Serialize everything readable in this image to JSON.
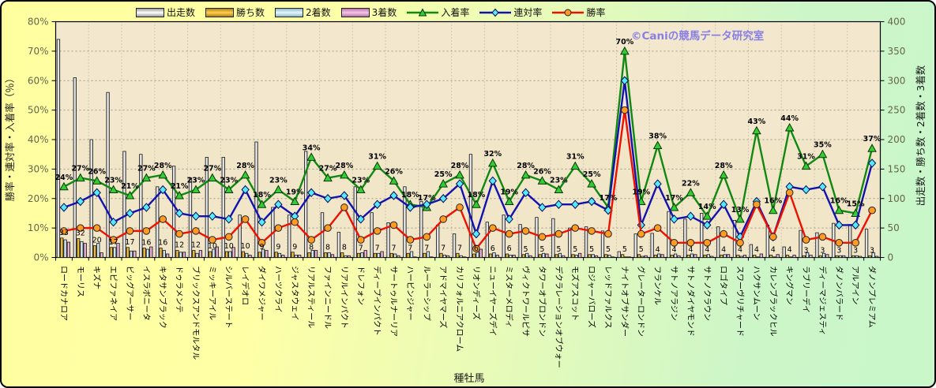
{
  "page": {
    "watermark": "©Caniの競馬データ研究室",
    "watermark_color": "#7d74e8"
  },
  "chart_data": {
    "type": "combo-bar-line",
    "x_axis": {
      "title": "種牡馬",
      "categories": [
        "ロードカナロア",
        "モーリス",
        "キズナ",
        "エピファネイア",
        "ビッグアーサー",
        "イスラボニータ",
        "キタサンブラック",
        "ドゥラメンテ",
        "ブリックスアンドモルタル",
        "ミッキーアイル",
        "シルバーステート",
        "レイデオロ",
        "ダイワメジャー",
        "ハーツクライ",
        "ジャスタウェイ",
        "リアルスティール",
        "ファインニードル",
        "リアルインパクト",
        "ドレフォン",
        "ディープインパクト",
        "サートゥルナーリア",
        "ハービンジャー",
        "ルーラーシップ",
        "アドマイヤマーズ",
        "カリフォルニアクローム",
        "リオンディーズ",
        "ニューイヤーズデイ",
        "ミスターメロディ",
        "ヴィクトワールピサ",
        "タワーオブロンドン",
        "デクラレーションオブウォー",
        "モズアスコット",
        "ロジャーバローズ",
        "レッドファルクス",
        "ナイトオブサンダー",
        "グレーターロンドン",
        "フランケル",
        "サトノアラジン",
        "サトノダイヤモンド",
        "サトノクラウン",
        "ロゴタイプ",
        "スワーヴリチャード",
        "ハクサンムーン",
        "カレンブラックヒル",
        "キングマン",
        "ラブリーデイ",
        "ディーマジェスティ",
        "ダノンバラード",
        "アルアイン",
        "ダノンプレミアム"
      ]
    },
    "y_left": {
      "title": "勝率・連対率・入着率（％）",
      "min": 0,
      "max": 80,
      "step": 10,
      "ticks": [
        "0%",
        "10%",
        "20%",
        "30%",
        "40%",
        "50%",
        "60%",
        "70%",
        "80%"
      ]
    },
    "y_right": {
      "title": "出走数・勝ち数・2着数・3着数",
      "min": 0,
      "max": 400,
      "step": 50,
      "ticks": [
        "0",
        "50",
        "100",
        "150",
        "200",
        "250",
        "300",
        "350",
        "400"
      ]
    },
    "grid": {
      "h_on": true,
      "v_on": true
    },
    "legend_position": "top",
    "series": [
      {
        "name": "出走数",
        "type": "bar",
        "axis": "right",
        "estimated": true,
        "data_labels": false,
        "edge": "#9a9a9a",
        "mid": "#ffffff",
        "values": [
          370,
          305,
          200,
          280,
          180,
          175,
          120,
          155,
          135,
          170,
          170,
          72,
          196,
          85,
          72,
          180,
          76,
          43,
          120,
          76,
          59,
          120,
          95,
          55,
          40,
          175,
          60,
          72,
          56,
          68,
          66,
          50,
          52,
          45,
          10,
          40,
          41,
          78,
          65,
          75,
          52,
          63,
          22,
          55,
          18,
          46,
          42,
          58,
          56,
          48
        ]
      },
      {
        "name": "勝ち数",
        "type": "bar",
        "axis": "right",
        "estimated": false,
        "data_labels": true,
        "edge": "#b07f10",
        "mid": "#ffd04e",
        "values": [
          33,
          32,
          20,
          17,
          17,
          16,
          16,
          12,
          12,
          10,
          10,
          10,
          9,
          9,
          9,
          8,
          8,
          8,
          7,
          7,
          7,
          7,
          7,
          7,
          7,
          6,
          6,
          6,
          5,
          5,
          5,
          5,
          5,
          5,
          5,
          5,
          4,
          4,
          4,
          4,
          4,
          4,
          4,
          4,
          4,
          3,
          3,
          3,
          3,
          3
        ]
      },
      {
        "name": "2着数",
        "type": "bar",
        "axis": "right",
        "estimated": true,
        "data_labels": false,
        "edge": "#8fb8c8",
        "mid": "#e6f7fd",
        "values": [
          30,
          27,
          24,
          17,
          11,
          14,
          12,
          9,
          7,
          14,
          10,
          7,
          14,
          7,
          4,
          12,
          8,
          3,
          8,
          7,
          6,
          10,
          10,
          4,
          3,
          9,
          8,
          4,
          7,
          7,
          7,
          4,
          5,
          4,
          1,
          2,
          6,
          6,
          6,
          5,
          5,
          2,
          1,
          1,
          1,
          8,
          7,
          3,
          3,
          8
        ]
      },
      {
        "name": "3着数",
        "type": "bar",
        "axis": "right",
        "estimated": true,
        "data_labels": false,
        "edge": "#b86fa8",
        "mid": "#f6c8e6",
        "values": [
          26,
          24,
          8,
          24,
          11,
          18,
          6,
          9,
          12,
          18,
          17,
          4,
          12,
          4,
          4,
          12,
          5,
          3,
          12,
          10,
          3,
          1,
          1,
          3,
          1,
          14,
          4,
          4,
          3,
          6,
          3,
          7,
          3,
          1,
          1,
          3,
          5,
          3,
          5,
          2,
          5,
          4,
          6,
          5,
          4,
          4,
          5,
          3,
          2,
          2
        ]
      },
      {
        "name": "入着率",
        "type": "line",
        "axis": "left",
        "estimated": false,
        "data_labels": true,
        "label_suffix": "%",
        "color": "#118811",
        "marker": "triangle",
        "marker_fill": "#33cc33",
        "marker_stroke": "#063806",
        "values": [
          24,
          27,
          26,
          23,
          21,
          27,
          28,
          21,
          23,
          27,
          23,
          28,
          18,
          23,
          19,
          34,
          27,
          28,
          23,
          31,
          26,
          18,
          17,
          25,
          28,
          18,
          32,
          19,
          28,
          26,
          23,
          31,
          25,
          17,
          70,
          19,
          38,
          17,
          22,
          14,
          28,
          13,
          43,
          16,
          44,
          31,
          35,
          16,
          15,
          37
        ]
      },
      {
        "name": "連対率",
        "type": "line",
        "axis": "left",
        "estimated": true,
        "data_labels": false,
        "color": "#1212b0",
        "marker": "diamond",
        "marker_fill": "#55e8ff",
        "marker_stroke": "#000a50",
        "values": [
          17,
          19,
          22,
          12,
          15,
          17,
          23,
          15,
          14,
          14,
          13,
          23,
          12,
          18,
          14,
          22,
          20,
          21,
          13,
          18,
          21,
          17,
          18,
          20,
          25,
          8,
          26,
          13,
          22,
          17,
          18,
          18,
          19,
          16,
          60,
          11,
          25,
          13,
          14,
          11,
          18,
          7,
          19,
          7,
          24,
          23,
          24,
          11,
          11,
          32
        ]
      },
      {
        "name": "勝率",
        "type": "line",
        "axis": "left",
        "estimated": true,
        "data_labels": false,
        "color": "#ee1100",
        "marker": "circle",
        "marker_fill": "#ff9a22",
        "marker_stroke": "#222222",
        "values": [
          9,
          10,
          10,
          6,
          9,
          9,
          13,
          8,
          9,
          6,
          7,
          13,
          5,
          10,
          12,
          6,
          10,
          17,
          6,
          9,
          11,
          6,
          7,
          13,
          17,
          3,
          10,
          8,
          9,
          7,
          8,
          10,
          9,
          8,
          50,
          8,
          10,
          5,
          5,
          5,
          8,
          5,
          18,
          7,
          22,
          6,
          7,
          5,
          5,
          16
        ]
      }
    ]
  }
}
